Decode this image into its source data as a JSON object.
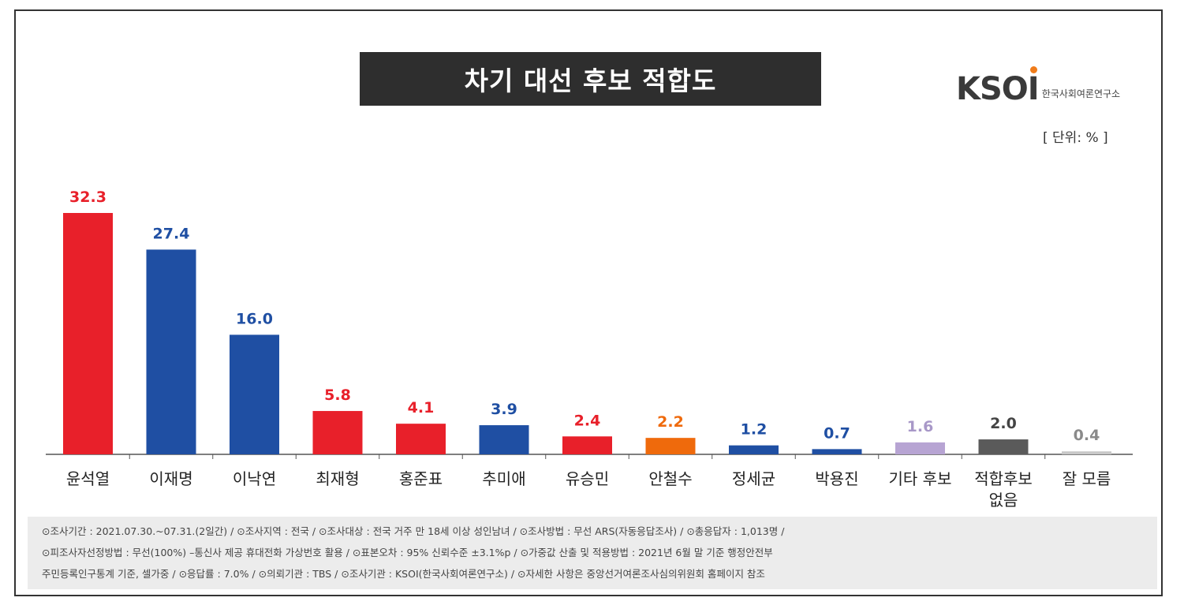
{
  "chart_title": "차기 대선 후보 적합도",
  "logo": {
    "mark": "KSOI",
    "subtitle": "한국사회여론연구소"
  },
  "unit_label": "[ 단위: % ]",
  "chart_data": {
    "type": "bar",
    "title": "차기 대선 후보 적합도",
    "ylabel": "",
    "xlabel": "",
    "unit": "%",
    "ylim": [
      0,
      32.3
    ],
    "grid": false,
    "categories": [
      "윤석열",
      "이재명",
      "이낙연",
      "최재형",
      "홍준표",
      "추미애",
      "유승민",
      "안철수",
      "정세균",
      "박용진",
      "기타 후보",
      "적합후보\n없음",
      "잘 모름"
    ],
    "values": [
      32.3,
      27.4,
      16.0,
      5.8,
      4.1,
      3.9,
      2.4,
      2.2,
      1.2,
      0.7,
      1.6,
      2.0,
      0.4
    ],
    "labels": [
      "32.3",
      "27.4",
      "16.0",
      "5.8",
      "4.1",
      "3.9",
      "2.4",
      "2.2",
      "1.2",
      "0.7",
      "1.6",
      "2.0",
      "0.4"
    ],
    "bar_colors": [
      "#e8202a",
      "#1f4fa3",
      "#1f4fa3",
      "#e8202a",
      "#e8202a",
      "#1f4fa3",
      "#e8202a",
      "#ef6a0c",
      "#1f4fa3",
      "#1f4fa3",
      "#b7a4d3",
      "#5a5a5a",
      "#c8c8c8"
    ],
    "label_colors": [
      "#e8202a",
      "#1f4fa3",
      "#1f4fa3",
      "#e8202a",
      "#e8202a",
      "#1f4fa3",
      "#e8202a",
      "#ef6a0c",
      "#1f4fa3",
      "#1f4fa3",
      "#a898c8",
      "#444444",
      "#8a8a8a"
    ]
  },
  "footer": {
    "line1": "⊙조사기간 : 2021.07.30.~07.31.(2일간)  / ⊙조사지역 : 전국 / ⊙조사대상 : 전국 거주 만 18세 이상 성인남녀 / ⊙조사방법 : 무선 ARS(자동응답조사) / ⊙총응답자 : 1,013명 /",
    "line2": "⊙피조사자선정방법 : 무선(100%) –통신사 제공 휴대전화 가상번호 활용 / ⊙표본오차 : 95% 신뢰수준 ±3.1%p / ⊙가중값 산출 및 적용방법 : 2021년 6월 말 기준 행정안전부",
    "line3": "주민등록인구통계 기준, 셀가중 / ⊙응답률 : 7.0% / ⊙의뢰기관 : TBS / ⊙조사기관 : KSOI(한국사회여론연구소) / ⊙자세한 사항은 중앙선거여론조사심의위원회 홈페이지 참조"
  }
}
